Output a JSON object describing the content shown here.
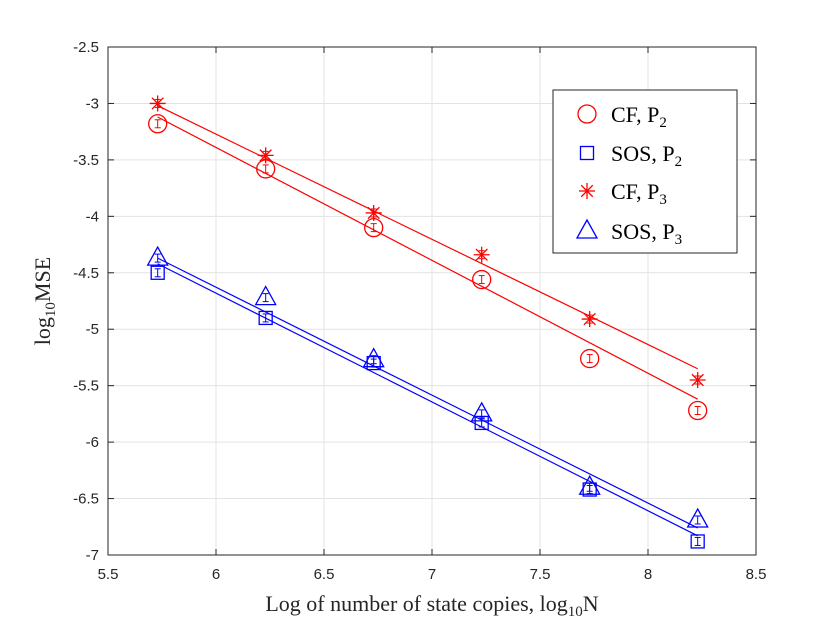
{
  "chart_data": {
    "type": "scatter",
    "title": "",
    "xlabel": "Log of number of state copies, log10N",
    "xlabel_parts": {
      "main": "Log of number of state copies, log",
      "sub": "10",
      "tail": "N"
    },
    "ylabel": "log10MSE",
    "ylabel_parts": {
      "main": "log",
      "sub": "10",
      "tail": "MSE"
    },
    "xlim": [
      5.5,
      8.5
    ],
    "ylim": [
      -7,
      -2.5
    ],
    "xticks": [
      5.5,
      6,
      6.5,
      7,
      7.5,
      8,
      8.5
    ],
    "xtick_labels": [
      "5.5",
      "6",
      "6.5",
      "7",
      "7.5",
      "8",
      "8.5"
    ],
    "yticks": [
      -7,
      -6.5,
      -6,
      -5.5,
      -5,
      -4.5,
      -4,
      -3.5,
      -3,
      -2.5
    ],
    "ytick_labels": [
      "-7",
      "-6.5",
      "-6",
      "-5.5",
      "-5",
      "-4.5",
      "-4",
      "-3.5",
      "-3",
      "-2.5"
    ],
    "grid": true,
    "legend_position": "top-right",
    "x": [
      5.73,
      6.23,
      6.73,
      7.23,
      7.73,
      8.23
    ],
    "series": [
      {
        "name": "CF, P2",
        "label_main": "CF, P",
        "label_sub": "2",
        "marker": "circle",
        "color": "#ff0000",
        "values": [
          -3.18,
          -3.58,
          -4.1,
          -4.56,
          -5.26,
          -5.72
        ],
        "fit": [
          -3.12,
          -5.62
        ]
      },
      {
        "name": "SOS, P2",
        "label_main": "SOS, P",
        "label_sub": "2",
        "marker": "square",
        "color": "#0000ff",
        "values": [
          -4.5,
          -4.9,
          -5.3,
          -5.83,
          -6.42,
          -6.88
        ],
        "fit": [
          -4.42,
          -6.83
        ]
      },
      {
        "name": "CF, P3",
        "label_main": "CF, P",
        "label_sub": "3",
        "marker": "star",
        "color": "#ff0000",
        "values": [
          -3.0,
          -3.46,
          -3.97,
          -4.34,
          -4.91,
          -5.45
        ],
        "fit": [
          -3.02,
          -5.35
        ]
      },
      {
        "name": "SOS, P3",
        "label_main": "SOS, P",
        "label_sub": "3",
        "marker": "triangle",
        "color": "#0000ff",
        "values": [
          -4.37,
          -4.72,
          -5.27,
          -5.75,
          -6.4,
          -6.69
        ],
        "fit": [
          -4.37,
          -6.76
        ]
      }
    ]
  }
}
